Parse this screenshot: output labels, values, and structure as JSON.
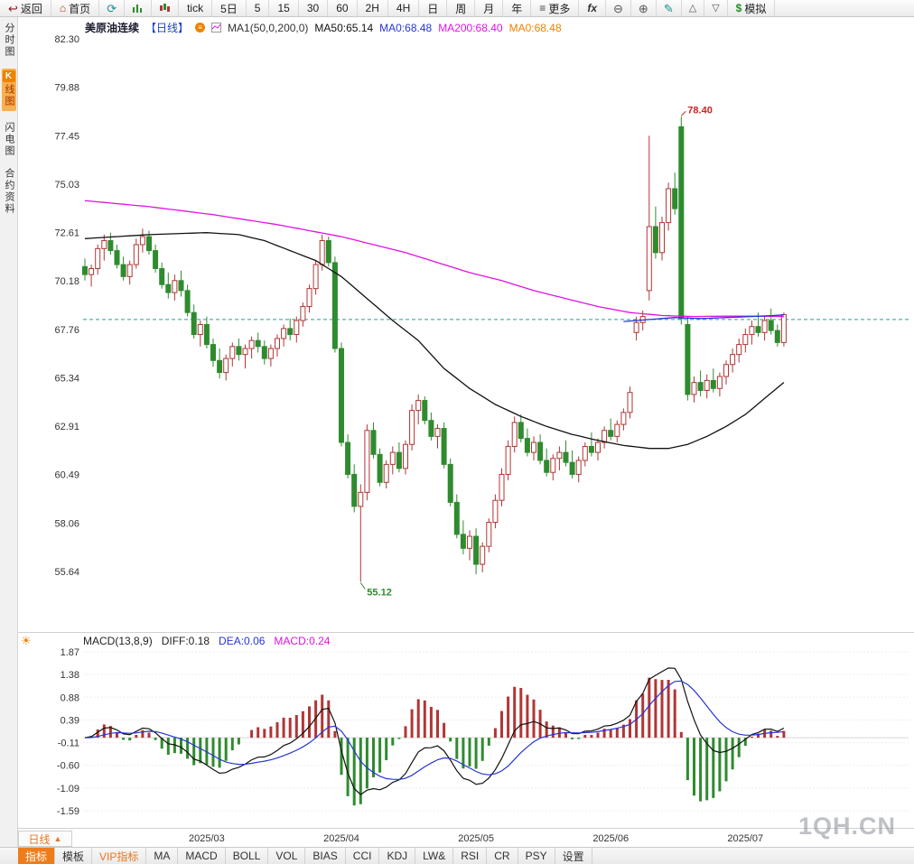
{
  "toolbar": {
    "back": "返回",
    "home": "首页",
    "tick": "tick",
    "day5": "5日",
    "periods": [
      "5",
      "15",
      "30",
      "60",
      "2H",
      "4H",
      "日",
      "周",
      "月",
      "年"
    ],
    "more": "更多",
    "fx": "fx",
    "sim_prefix": "$",
    "sim": "模拟"
  },
  "sidebar": {
    "items": [
      {
        "label": "分时图"
      },
      {
        "badge": "K",
        "label": "线图"
      },
      {
        "label": "闪电图"
      },
      {
        "label": "合约资料"
      }
    ]
  },
  "chart_header": {
    "symbol": "美原油连续",
    "period": "【日线】",
    "ma_group": "MA1(50,0,200,0)",
    "ma50_label": "MA50:65.14",
    "ma0_blue": "MA0:68.48",
    "ma200_label": "MA200:68.40",
    "ma0_orange": "MA0:68.48"
  },
  "macd_header": {
    "label": "MACD(13,8,9)",
    "diff": "DIFF:0.18",
    "dea": "DEA:0.06",
    "macd": "MACD:0.24"
  },
  "bottom_bar": {
    "period": "日线",
    "period_arrow": "▲",
    "tabs": [
      "指标",
      "模板",
      "VIP指标",
      "MA",
      "MACD",
      "BOLL",
      "VOL",
      "BIAS",
      "CCI",
      "KDJ",
      "LW&",
      "RSI",
      "CR",
      "PSY",
      "设置"
    ]
  },
  "watermark": "1QH.CN",
  "chart_data": {
    "type": "candlestick",
    "title": "美原油连续 日线 (US Crude Oil Continuous, Daily)",
    "y_axis_labels": [
      "82.30",
      "79.88",
      "77.45",
      "75.03",
      "72.61",
      "70.18",
      "67.76",
      "65.34",
      "62.91",
      "60.49",
      "58.06",
      "55.64"
    ],
    "x_axis_labels": [
      "2025/03",
      "2025/04",
      "2025/05",
      "2025/06",
      "2025/07"
    ],
    "x_label_indices": [
      19,
      40,
      61,
      82,
      103
    ],
    "current_price_line": 68.25,
    "annotations": {
      "high": {
        "index": 93,
        "price": 78.4,
        "label": "78.40"
      },
      "low": {
        "index": 43,
        "price": 55.12,
        "label": "55.12"
      }
    },
    "colors": {
      "up": "#b23535",
      "down": "#2e8b2e",
      "ma50": "#111111",
      "ma200": "#e013e0",
      "blue": "#2635d6",
      "dashed_line": "#2a9d9d",
      "annotation_high": "#cc2222",
      "annotation_low": "#2e8b2e",
      "grid": "#ededed",
      "zero_line": "#d8d8d8"
    },
    "candles": [
      [
        70.9,
        71.3,
        70.2,
        70.5
      ],
      [
        70.5,
        71.0,
        69.9,
        70.8
      ],
      [
        70.8,
        72.0,
        70.5,
        71.8
      ],
      [
        71.8,
        72.5,
        71.2,
        72.2
      ],
      [
        72.2,
        72.6,
        71.5,
        71.7
      ],
      [
        71.7,
        72.0,
        70.8,
        71.0
      ],
      [
        71.0,
        71.4,
        70.2,
        70.4
      ],
      [
        70.4,
        71.2,
        70.0,
        71.0
      ],
      [
        71.0,
        72.3,
        70.8,
        72.0
      ],
      [
        72.0,
        72.8,
        71.6,
        72.4
      ],
      [
        72.4,
        72.7,
        71.5,
        71.7
      ],
      [
        71.7,
        72.0,
        70.6,
        70.8
      ],
      [
        70.8,
        71.1,
        69.8,
        70.0
      ],
      [
        70.0,
        70.6,
        69.3,
        69.6
      ],
      [
        69.6,
        70.5,
        69.2,
        70.2
      ],
      [
        70.2,
        70.7,
        69.4,
        69.7
      ],
      [
        69.7,
        70.0,
        68.4,
        68.6
      ],
      [
        68.6,
        69.0,
        67.3,
        67.5
      ],
      [
        67.5,
        68.2,
        66.9,
        68.0
      ],
      [
        68.0,
        68.4,
        66.8,
        67.0
      ],
      [
        67.0,
        67.3,
        65.9,
        66.2
      ],
      [
        66.2,
        66.8,
        65.3,
        65.6
      ],
      [
        65.6,
        66.5,
        65.2,
        66.3
      ],
      [
        66.3,
        67.1,
        65.9,
        66.9
      ],
      [
        66.9,
        67.3,
        66.2,
        66.5
      ],
      [
        66.5,
        67.0,
        65.8,
        66.8
      ],
      [
        66.8,
        67.4,
        66.3,
        67.2
      ],
      [
        67.2,
        67.6,
        66.6,
        66.9
      ],
      [
        66.9,
        67.2,
        66.0,
        66.3
      ],
      [
        66.3,
        67.0,
        65.9,
        66.8
      ],
      [
        66.8,
        67.5,
        66.4,
        67.3
      ],
      [
        67.3,
        68.0,
        66.9,
        67.8
      ],
      [
        67.8,
        68.3,
        67.2,
        67.5
      ],
      [
        67.5,
        68.4,
        67.1,
        68.2
      ],
      [
        68.2,
        69.1,
        67.9,
        68.9
      ],
      [
        68.9,
        70.0,
        68.6,
        69.8
      ],
      [
        69.8,
        71.2,
        69.5,
        71.0
      ],
      [
        71.0,
        72.5,
        70.7,
        72.2
      ],
      [
        72.2,
        72.4,
        70.9,
        71.1
      ],
      [
        71.1,
        71.4,
        66.6,
        66.8
      ],
      [
        66.8,
        67.1,
        61.9,
        62.1
      ],
      [
        62.1,
        62.5,
        60.3,
        60.5
      ],
      [
        60.5,
        61.0,
        58.6,
        58.9
      ],
      [
        58.9,
        60.0,
        55.12,
        59.6
      ],
      [
        59.6,
        63.0,
        59.2,
        62.7
      ],
      [
        62.7,
        63.1,
        61.3,
        61.5
      ],
      [
        61.5,
        61.8,
        59.9,
        60.1
      ],
      [
        60.1,
        61.2,
        59.8,
        61.0
      ],
      [
        61.0,
        61.9,
        60.5,
        61.6
      ],
      [
        61.6,
        62.1,
        60.6,
        60.8
      ],
      [
        60.8,
        62.2,
        60.5,
        62.0
      ],
      [
        62.0,
        64.0,
        61.7,
        63.7
      ],
      [
        63.7,
        64.5,
        63.0,
        64.2
      ],
      [
        64.2,
        64.4,
        63.0,
        63.2
      ],
      [
        63.2,
        63.6,
        62.2,
        62.4
      ],
      [
        62.4,
        63.0,
        61.8,
        62.8
      ],
      [
        62.8,
        63.1,
        60.8,
        61.0
      ],
      [
        61.0,
        61.3,
        58.9,
        59.1
      ],
      [
        59.1,
        59.5,
        57.3,
        57.5
      ],
      [
        57.5,
        58.2,
        56.5,
        56.8
      ],
      [
        56.8,
        57.7,
        56.2,
        57.4
      ],
      [
        57.4,
        57.8,
        55.5,
        56.0
      ],
      [
        56.0,
        57.1,
        55.6,
        56.9
      ],
      [
        56.9,
        58.3,
        56.6,
        58.1
      ],
      [
        58.1,
        59.5,
        57.8,
        59.2
      ],
      [
        59.2,
        60.8,
        58.9,
        60.5
      ],
      [
        60.5,
        62.2,
        60.2,
        61.9
      ],
      [
        61.9,
        63.4,
        61.6,
        63.1
      ],
      [
        63.1,
        63.5,
        62.1,
        62.3
      ],
      [
        62.3,
        62.8,
        61.4,
        61.6
      ],
      [
        61.6,
        62.4,
        61.2,
        62.1
      ],
      [
        62.1,
        62.5,
        61.0,
        61.2
      ],
      [
        61.2,
        61.8,
        60.4,
        60.6
      ],
      [
        60.6,
        61.5,
        60.2,
        61.3
      ],
      [
        61.3,
        61.9,
        60.7,
        61.6
      ],
      [
        61.6,
        62.2,
        60.9,
        61.1
      ],
      [
        61.1,
        61.7,
        60.3,
        60.5
      ],
      [
        60.5,
        61.4,
        60.1,
        61.2
      ],
      [
        61.2,
        62.1,
        60.9,
        61.9
      ],
      [
        61.9,
        62.6,
        61.4,
        61.6
      ],
      [
        61.6,
        62.3,
        61.2,
        62.1
      ],
      [
        62.1,
        62.9,
        61.8,
        62.7
      ],
      [
        62.7,
        63.3,
        62.2,
        62.4
      ],
      [
        62.4,
        63.2,
        62.1,
        63.0
      ],
      [
        63.0,
        63.8,
        62.7,
        63.6
      ],
      [
        63.6,
        64.9,
        63.3,
        64.6
      ],
      [
        67.6,
        68.4,
        67.2,
        68.1
      ],
      [
        68.1,
        68.7,
        67.7,
        68.4
      ],
      [
        69.7,
        77.45,
        69.2,
        72.9
      ],
      [
        72.9,
        73.9,
        71.3,
        71.6
      ],
      [
        71.6,
        73.4,
        71.2,
        73.1
      ],
      [
        73.1,
        75.1,
        72.7,
        74.8
      ],
      [
        74.8,
        75.6,
        73.5,
        73.8
      ],
      [
        77.9,
        78.4,
        68.0,
        68.3
      ],
      [
        68.0,
        68.4,
        64.2,
        64.5
      ],
      [
        64.5,
        65.4,
        64.1,
        65.1
      ],
      [
        65.1,
        65.7,
        64.4,
        64.7
      ],
      [
        64.7,
        65.5,
        64.3,
        65.2
      ],
      [
        65.2,
        65.8,
        64.6,
        64.8
      ],
      [
        64.8,
        65.6,
        64.4,
        65.4
      ],
      [
        65.4,
        66.2,
        65.0,
        66.0
      ],
      [
        66.0,
        66.8,
        65.6,
        66.5
      ],
      [
        66.5,
        67.3,
        66.1,
        67.0
      ],
      [
        67.0,
        67.8,
        66.6,
        67.5
      ],
      [
        67.5,
        68.2,
        67.0,
        67.9
      ],
      [
        67.9,
        68.6,
        67.4,
        67.6
      ],
      [
        67.6,
        68.4,
        67.2,
        68.2
      ],
      [
        68.2,
        68.8,
        67.5,
        67.7
      ],
      [
        67.7,
        68.0,
        66.9,
        67.1
      ],
      [
        67.1,
        68.6,
        66.9,
        68.5
      ]
    ],
    "ma_lines": {
      "ma50": [
        [
          0,
          72.3
        ],
        [
          10,
          72.5
        ],
        [
          19,
          72.6
        ],
        [
          24,
          72.5
        ],
        [
          28,
          72.2
        ],
        [
          32,
          71.7
        ],
        [
          36,
          71.2
        ],
        [
          40,
          70.4
        ],
        [
          44,
          69.3
        ],
        [
          48,
          68.2
        ],
        [
          52,
          67.2
        ],
        [
          56,
          65.8
        ],
        [
          60,
          64.8
        ],
        [
          64,
          64.0
        ],
        [
          68,
          63.4
        ],
        [
          72,
          62.9
        ],
        [
          76,
          62.5
        ],
        [
          80,
          62.2
        ],
        [
          84,
          61.95
        ],
        [
          88,
          61.8
        ],
        [
          91,
          61.8
        ],
        [
          94,
          62.0
        ],
        [
          97,
          62.4
        ],
        [
          100,
          62.9
        ],
        [
          103,
          63.5
        ],
        [
          106,
          64.3
        ],
        [
          109,
          65.1
        ]
      ],
      "ma200": [
        [
          0,
          74.2
        ],
        [
          10,
          73.9
        ],
        [
          20,
          73.5
        ],
        [
          30,
          73.0
        ],
        [
          40,
          72.4
        ],
        [
          50,
          71.6
        ],
        [
          55,
          71.1
        ],
        [
          60,
          70.6
        ],
        [
          65,
          70.2
        ],
        [
          70,
          69.7
        ],
        [
          75,
          69.3
        ],
        [
          80,
          68.9
        ],
        [
          85,
          68.6
        ],
        [
          90,
          68.45
        ],
        [
          95,
          68.4
        ],
        [
          100,
          68.42
        ],
        [
          105,
          68.42
        ],
        [
          109,
          68.4
        ]
      ],
      "ma_blue": [
        [
          84,
          68.15
        ],
        [
          88,
          68.25
        ],
        [
          92,
          68.35
        ],
        [
          96,
          68.3
        ],
        [
          100,
          68.35
        ],
        [
          104,
          68.4
        ],
        [
          109,
          68.48
        ]
      ]
    },
    "macd": {
      "params": "(13,8,9)",
      "fast": 8,
      "slow": 13,
      "signal": 9,
      "y_labels": [
        "1.87",
        "1.38",
        "0.88",
        "0.39",
        "-0.11",
        "-0.60",
        "-1.09",
        "-1.59"
      ]
    }
  }
}
